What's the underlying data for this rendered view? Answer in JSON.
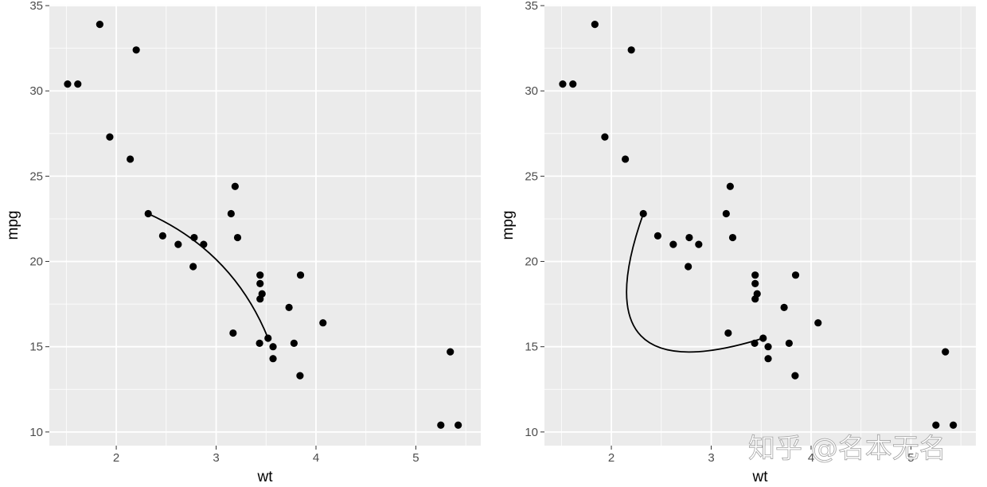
{
  "colors": {
    "panel_background": "#ebebeb",
    "grid_major": "#ffffff",
    "points": "#000000",
    "curve": "#000000",
    "tick_text": "#4d4d4d"
  },
  "watermark": {
    "text": "知乎 @名本无名"
  },
  "chart_data": [
    {
      "type": "scatter",
      "xlabel": "wt",
      "ylabel": "mpg",
      "xlim": [
        1.33,
        5.65
      ],
      "ylim": [
        9.2,
        35.05
      ],
      "x_ticks": [
        2,
        3,
        4,
        5
      ],
      "y_ticks": [
        10,
        15,
        20,
        25,
        30,
        35
      ],
      "grid": true,
      "points": [
        [
          1.513,
          30.4
        ],
        [
          1.615,
          30.4
        ],
        [
          1.835,
          33.9
        ],
        [
          1.935,
          27.3
        ],
        [
          2.14,
          26.0
        ],
        [
          2.2,
          32.4
        ],
        [
          2.32,
          22.8
        ],
        [
          2.465,
          21.5
        ],
        [
          2.62,
          21.0
        ],
        [
          2.77,
          19.7
        ],
        [
          2.78,
          21.4
        ],
        [
          2.875,
          21.0
        ],
        [
          3.15,
          22.8
        ],
        [
          3.17,
          15.8
        ],
        [
          3.19,
          24.4
        ],
        [
          3.215,
          21.4
        ],
        [
          3.435,
          15.2
        ],
        [
          3.44,
          18.7
        ],
        [
          3.44,
          19.2
        ],
        [
          3.44,
          17.8
        ],
        [
          3.46,
          18.1
        ],
        [
          3.52,
          15.5
        ],
        [
          3.57,
          15.0
        ],
        [
          3.57,
          14.3
        ],
        [
          3.73,
          17.3
        ],
        [
          3.78,
          15.2
        ],
        [
          3.84,
          13.3
        ],
        [
          3.845,
          19.2
        ],
        [
          4.07,
          16.4
        ],
        [
          5.25,
          10.4
        ],
        [
          5.345,
          14.7
        ],
        [
          5.424,
          10.4
        ]
      ],
      "curve": {
        "from": [
          2.32,
          22.8
        ],
        "to": [
          3.52,
          15.5
        ],
        "curvature": -0.2
      }
    },
    {
      "type": "scatter",
      "xlabel": "wt",
      "ylabel": "mpg",
      "xlim": [
        1.33,
        5.65
      ],
      "ylim": [
        9.2,
        35.05
      ],
      "x_ticks": [
        2,
        3,
        4,
        5
      ],
      "y_ticks": [
        10,
        15,
        20,
        25,
        30,
        35
      ],
      "grid": true,
      "points": [
        [
          1.513,
          30.4
        ],
        [
          1.615,
          30.4
        ],
        [
          1.835,
          33.9
        ],
        [
          1.935,
          27.3
        ],
        [
          2.14,
          26.0
        ],
        [
          2.2,
          32.4
        ],
        [
          2.32,
          22.8
        ],
        [
          2.465,
          21.5
        ],
        [
          2.62,
          21.0
        ],
        [
          2.77,
          19.7
        ],
        [
          2.78,
          21.4
        ],
        [
          2.875,
          21.0
        ],
        [
          3.15,
          22.8
        ],
        [
          3.17,
          15.8
        ],
        [
          3.19,
          24.4
        ],
        [
          3.215,
          21.4
        ],
        [
          3.435,
          15.2
        ],
        [
          3.44,
          18.7
        ],
        [
          3.44,
          19.2
        ],
        [
          3.44,
          17.8
        ],
        [
          3.46,
          18.1
        ],
        [
          3.52,
          15.5
        ],
        [
          3.57,
          15.0
        ],
        [
          3.57,
          14.3
        ],
        [
          3.73,
          17.3
        ],
        [
          3.78,
          15.2
        ],
        [
          3.84,
          13.3
        ],
        [
          3.845,
          19.2
        ],
        [
          4.07,
          16.4
        ],
        [
          5.25,
          10.4
        ],
        [
          5.345,
          14.7
        ],
        [
          5.424,
          10.4
        ]
      ],
      "curve": {
        "from": [
          2.32,
          22.8
        ],
        "to": [
          3.52,
          15.5
        ],
        "curvature": 1.0
      }
    }
  ]
}
